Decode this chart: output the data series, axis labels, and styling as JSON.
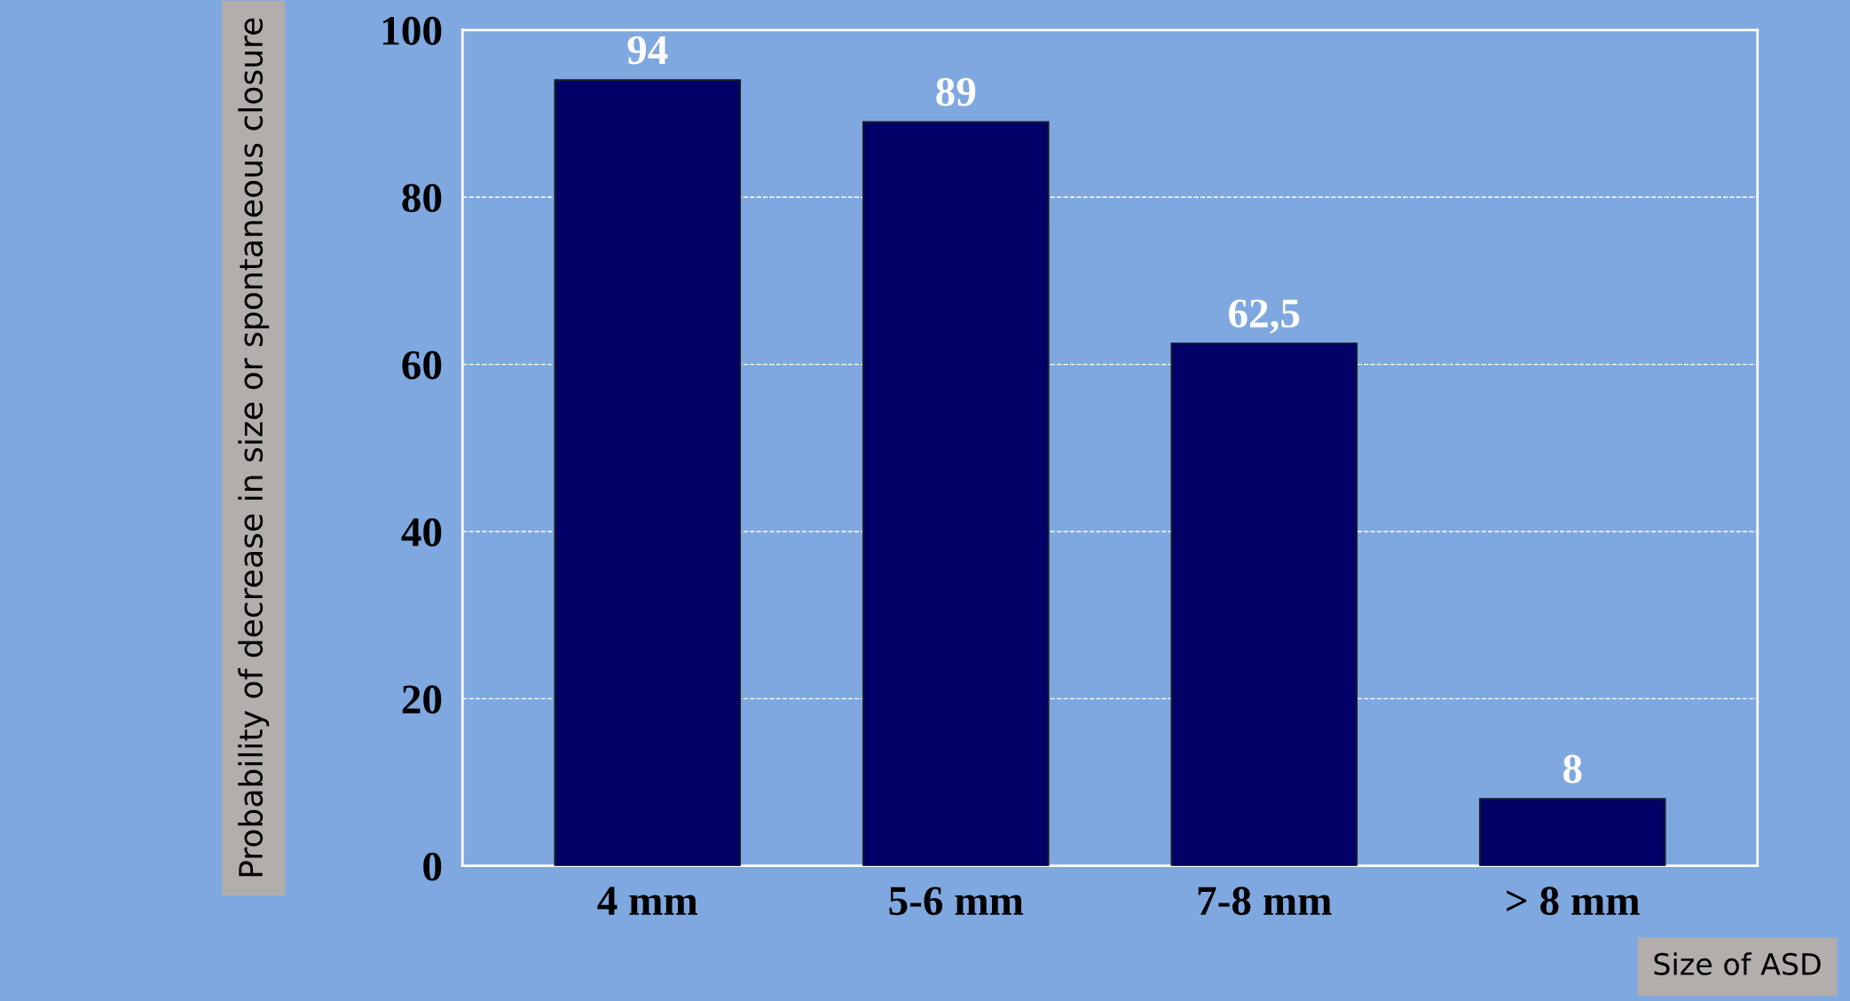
{
  "chart_data": {
    "type": "bar",
    "xlabel": "Size of ASD",
    "ylabel": "Probability of decrease in size or spontaneous closure",
    "categories": [
      "4 mm",
      "5-6 mm",
      "7-8 mm",
      "> 8 mm"
    ],
    "values": [
      94,
      89,
      62.5,
      8
    ],
    "value_labels": [
      "94",
      "89",
      "62,5",
      "8"
    ],
    "color": "#000066",
    "ylim": [
      0,
      100
    ],
    "yticks": [
      0,
      20,
      40,
      60,
      80,
      100
    ],
    "grid": "y"
  }
}
